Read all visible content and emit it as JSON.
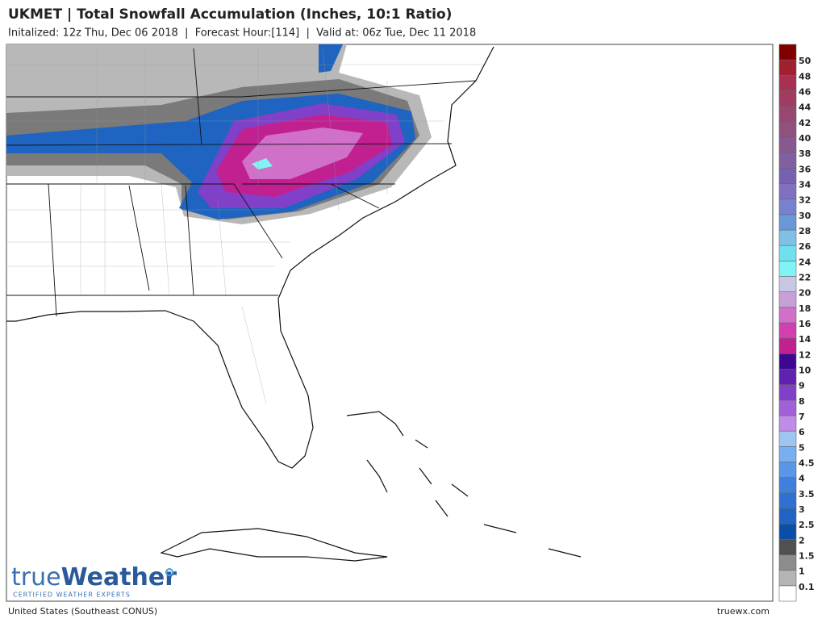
{
  "header": {
    "title": "UKMET | Total Snowfall Accumulation (Inches, 10:1 Ratio)",
    "subtitle": "Initalized: 12z Thu, Dec 06 2018  |  Forecast Hour:[114]  |  Valid at: 06z Tue, Dec 11 2018"
  },
  "legend": {
    "labels": [
      "0.1",
      "1",
      "1.5",
      "2",
      "2.5",
      "3",
      "3.5",
      "4",
      "4.5",
      "5",
      "6",
      "7",
      "8",
      "9",
      "10",
      "12",
      "14",
      "16",
      "18",
      "20",
      "22",
      "24",
      "26",
      "28",
      "30",
      "32",
      "34",
      "36",
      "38",
      "40",
      "42",
      "44",
      "46",
      "48",
      "50"
    ],
    "colors": [
      "#ffffff",
      "#b4b4b4",
      "#8c8c8c",
      "#505050",
      "#0a4ea8",
      "#1e64c0",
      "#3070d0",
      "#4080dc",
      "#5a96e6",
      "#78aff0",
      "#9ec4f4",
      "#c08ce8",
      "#a060d8",
      "#8040c8",
      "#6020b0",
      "#3c0890",
      "#c02090",
      "#d040b0",
      "#d070c8",
      "#c8a0d8",
      "#c8c8e4",
      "#80f4f4",
      "#70e0f0",
      "#80c0e8",
      "#6898d8",
      "#7880d0",
      "#8070c0",
      "#7860b0",
      "#8060a0",
      "#885890",
      "#905080",
      "#984870",
      "#a03c60",
      "#a83050",
      "#a02030",
      "#800000"
    ]
  },
  "logo": {
    "brand_a": "true",
    "brand_b": "Weather",
    "tagline": "CERTIFIED WEATHER EXPERTS"
  },
  "footer": {
    "region": "United States (Southeast CONUS)",
    "site": "truewx.com"
  }
}
